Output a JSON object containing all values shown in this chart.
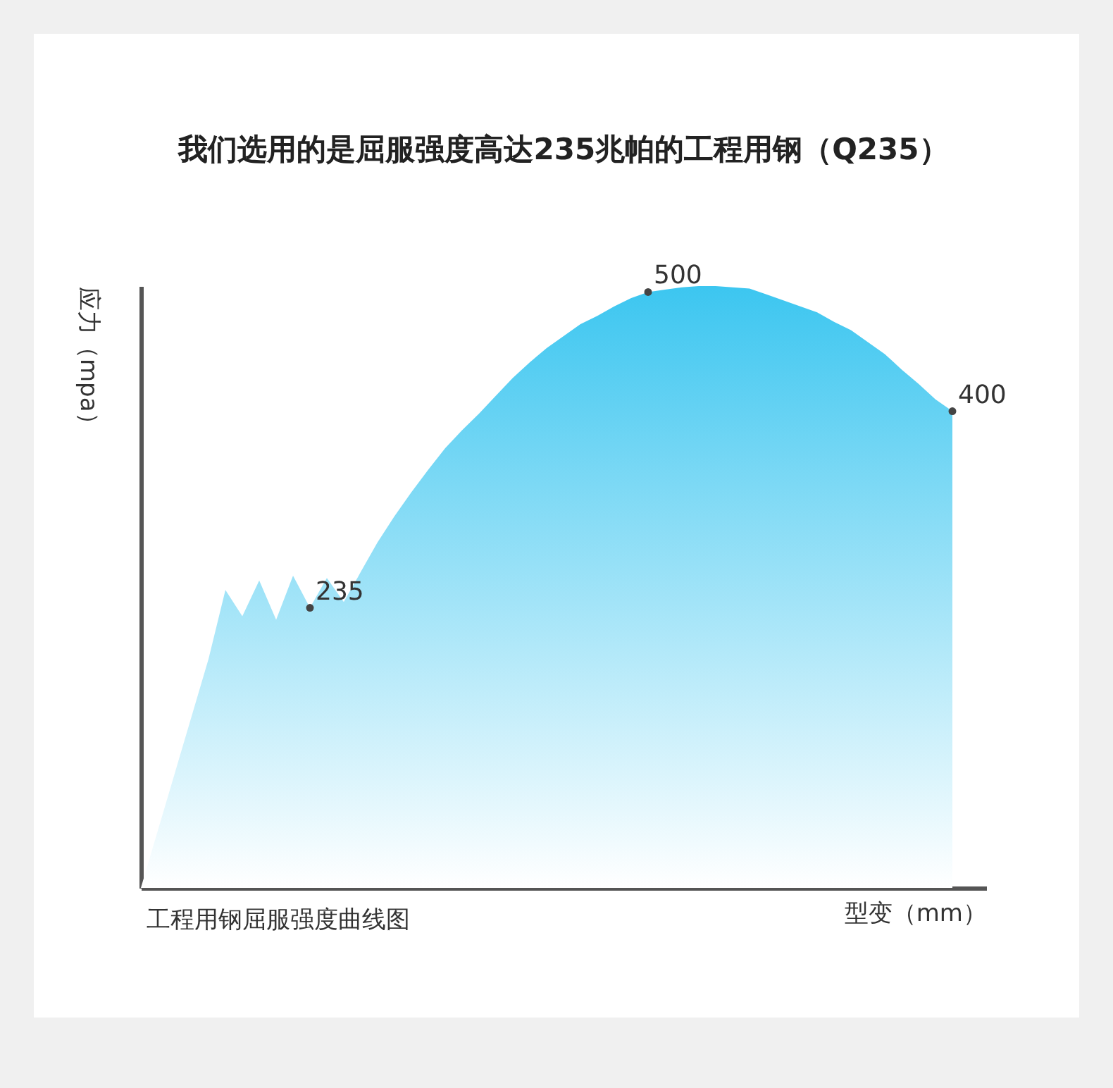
{
  "chart_data": {
    "type": "area",
    "title": "我们选用的是屈服强度高达235兆帕的工程用钢（Q235）",
    "ylabel": "应力（mpa）",
    "xlabel": "型变（mm）",
    "annotations": [
      "工程用钢屈服强度曲线图"
    ],
    "categories": [
      null,
      null,
      null,
      null,
      null,
      null,
      null,
      null,
      null,
      null,
      null,
      null,
      null,
      null,
      null,
      null,
      null,
      null,
      null,
      null,
      null,
      null,
      null,
      null,
      null,
      null,
      null,
      null,
      null,
      null,
      null,
      null,
      null,
      null,
      null,
      null,
      null,
      null,
      null,
      null,
      null,
      null,
      null,
      null,
      null,
      null,
      null,
      null,
      null,
      null,
      null
    ],
    "series": [
      {
        "color": "#3cc6f0",
        "values": [
          0,
          48,
          96,
          144,
          192,
          250,
          228,
          258,
          225,
          262,
          235,
          260,
          240,
          265,
          290,
          312,
          332,
          351,
          369,
          384,
          398,
          413,
          428,
          441,
          453,
          463,
          473,
          480,
          488,
          495,
          500,
          502,
          504,
          505,
          505,
          504,
          503,
          498,
          493,
          488,
          483,
          475,
          468,
          458,
          448,
          435,
          423,
          410,
          400,
          null,
          null
        ],
        "value_labels": [
          null,
          null,
          null,
          null,
          null,
          null,
          null,
          null,
          null,
          null,
          "235",
          null,
          null,
          null,
          null,
          null,
          null,
          null,
          null,
          null,
          null,
          null,
          null,
          null,
          null,
          null,
          null,
          null,
          null,
          null,
          "500",
          null,
          null,
          null,
          null,
          null,
          null,
          null,
          null,
          null,
          null,
          null,
          null,
          null,
          null,
          null,
          null,
          null,
          "400",
          null,
          null
        ]
      }
    ]
  }
}
